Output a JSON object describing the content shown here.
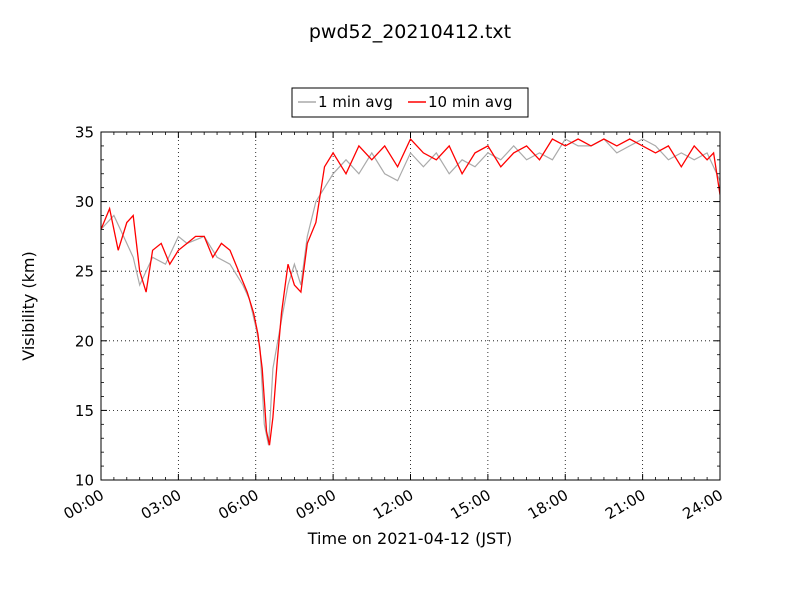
{
  "chart_data": {
    "type": "line",
    "title": "pwd52_20210412.txt",
    "xlabel": "Time on 2021-04-12 (JST)",
    "ylabel": "Visibility (km)",
    "xlim": [
      "00:00",
      "24:00"
    ],
    "ylim": [
      10,
      35
    ],
    "x_ticks": [
      "00:00",
      "03:00",
      "06:00",
      "09:00",
      "12:00",
      "15:00",
      "18:00",
      "21:00",
      "24:00"
    ],
    "y_ticks": [
      "10",
      "15",
      "20",
      "25",
      "30",
      "35"
    ],
    "grid": true,
    "legend_position": "top-center",
    "series": [
      {
        "name": "1 min avg",
        "color": "#aaaaaa",
        "x": [
          "00:00",
          "00:30",
          "01:00",
          "01:15",
          "01:30",
          "02:00",
          "02:30",
          "03:00",
          "03:20",
          "04:00",
          "04:30",
          "05:00",
          "05:30",
          "05:45",
          "06:00",
          "06:10",
          "06:20",
          "06:30",
          "06:40",
          "07:00",
          "07:15",
          "07:30",
          "07:45",
          "08:00",
          "08:20",
          "08:40",
          "09:00",
          "09:30",
          "10:00",
          "10:30",
          "11:00",
          "11:30",
          "12:00",
          "12:30",
          "13:00",
          "13:30",
          "14:00",
          "14:30",
          "15:00",
          "15:30",
          "16:00",
          "16:30",
          "17:00",
          "17:30",
          "18:00",
          "18:30",
          "19:00",
          "19:30",
          "20:00",
          "20:30",
          "21:00",
          "21:30",
          "22:00",
          "22:30",
          "23:00",
          "23:30",
          "24:00"
        ],
        "y": [
          28,
          29,
          27,
          26,
          24,
          26,
          25.5,
          27.5,
          27,
          27.5,
          26,
          25.5,
          24,
          23,
          21,
          19.5,
          14,
          12.5,
          18,
          21.5,
          24,
          25.5,
          24,
          27.5,
          30,
          31,
          32,
          33,
          32,
          33.5,
          32,
          31.5,
          33.5,
          32.5,
          33.5,
          32,
          33,
          32.5,
          33.5,
          33,
          34,
          33,
          33.5,
          33,
          34.5,
          34,
          34,
          34.5,
          33.5,
          34,
          34.5,
          34,
          33,
          33.5,
          33,
          33.5,
          31.5
        ]
      },
      {
        "name": "10 min avg",
        "color": "#ff0000",
        "x": [
          "00:00",
          "00:20",
          "00:40",
          "01:00",
          "01:15",
          "01:30",
          "01:45",
          "02:00",
          "02:20",
          "02:40",
          "03:00",
          "03:20",
          "03:40",
          "04:00",
          "04:20",
          "04:40",
          "05:00",
          "05:20",
          "05:40",
          "05:55",
          "06:05",
          "06:15",
          "06:25",
          "06:32",
          "06:40",
          "06:50",
          "07:00",
          "07:15",
          "07:30",
          "07:45",
          "08:00",
          "08:20",
          "08:40",
          "09:00",
          "09:30",
          "10:00",
          "10:30",
          "11:00",
          "11:30",
          "12:00",
          "12:30",
          "13:00",
          "13:30",
          "14:00",
          "14:30",
          "15:00",
          "15:30",
          "16:00",
          "16:30",
          "17:00",
          "17:30",
          "18:00",
          "18:30",
          "19:00",
          "19:30",
          "20:00",
          "20:30",
          "21:00",
          "21:30",
          "22:00",
          "22:30",
          "23:00",
          "23:30",
          "23:45",
          "24:00"
        ],
        "y": [
          28,
          29.5,
          26.5,
          28.5,
          29,
          25,
          23.5,
          26.5,
          27,
          25.5,
          26.5,
          27,
          27.5,
          27.5,
          26,
          27,
          26.5,
          25,
          23.5,
          22,
          20.5,
          18,
          13.5,
          12.5,
          14.5,
          18.5,
          22,
          25.5,
          24,
          23.5,
          27,
          28.5,
          32.5,
          33.5,
          32,
          34,
          33,
          34,
          32.5,
          34.5,
          33.5,
          33,
          34,
          32,
          33.5,
          34,
          32.5,
          33.5,
          34,
          33,
          34.5,
          34,
          34.5,
          34,
          34.5,
          34,
          34.5,
          34,
          33.5,
          34,
          32.5,
          34,
          33,
          33.5,
          30.5
        ]
      }
    ]
  }
}
